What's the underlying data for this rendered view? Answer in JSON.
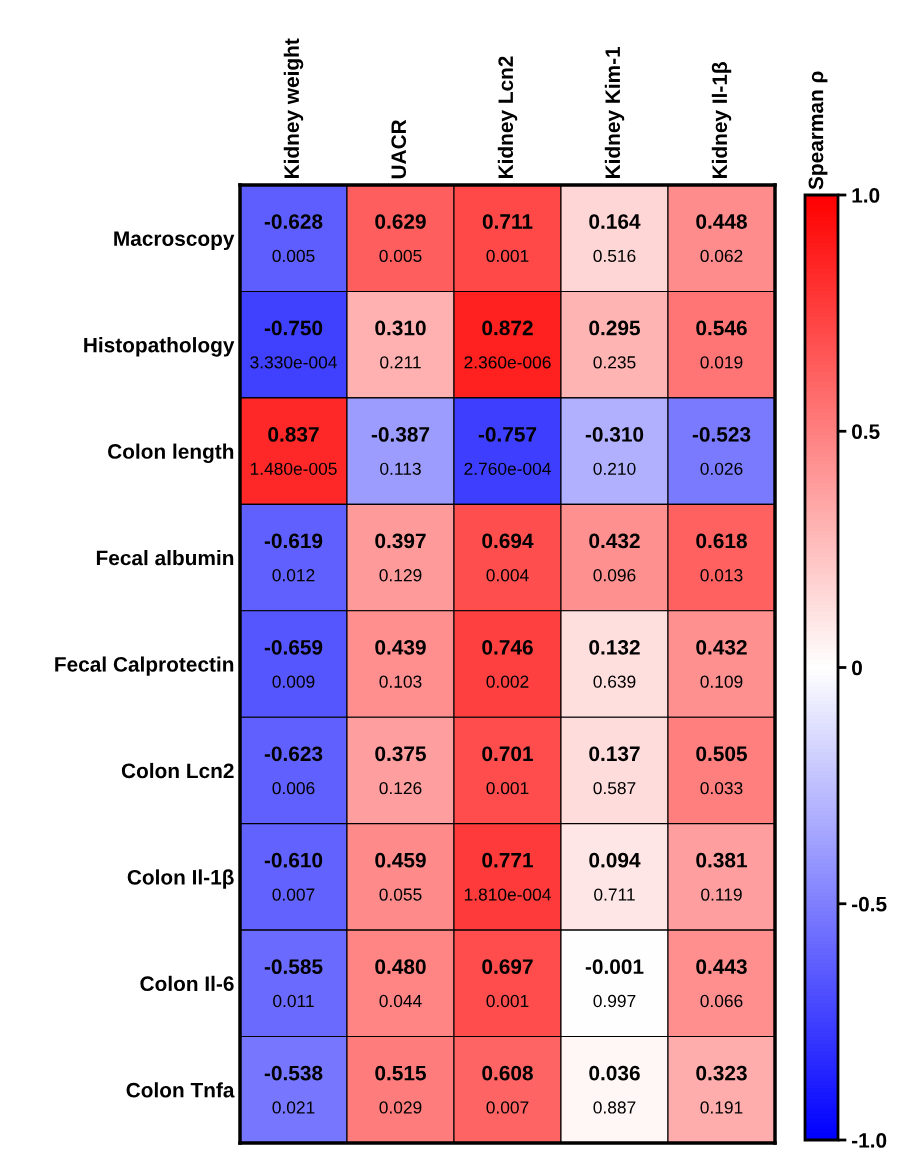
{
  "chart_data": {
    "type": "heatmap",
    "clabel": "Spearman ρ",
    "categories": [
      "Kidney weight",
      "UACR",
      "Kidney Lcn2",
      "Kidney Kim-1",
      "Kidney Il-1β"
    ],
    "y_categories": [
      "Macroscopy",
      "Histopathology",
      "Colon length",
      "Fecal albumin",
      "Fecal Calprotectin",
      "Colon Lcn2",
      "Colon Il-1β",
      "Colon Il-6",
      "Colon Tnfa"
    ],
    "cells": [
      [
        -0.628,
        0.629,
        0.711,
        0.164,
        0.448
      ],
      [
        -0.75,
        0.31,
        0.872,
        0.295,
        0.546
      ],
      [
        0.837,
        -0.387,
        -0.757,
        -0.31,
        -0.523
      ],
      [
        -0.619,
        0.397,
        0.694,
        0.432,
        0.618
      ],
      [
        -0.659,
        0.439,
        0.746,
        0.132,
        0.432
      ],
      [
        -0.623,
        0.375,
        0.701,
        0.137,
        0.505
      ],
      [
        -0.61,
        0.459,
        0.771,
        0.094,
        0.381
      ],
      [
        -0.585,
        0.48,
        0.697,
        -0.001,
        0.443
      ],
      [
        -0.538,
        0.515,
        0.608,
        0.036,
        0.323
      ]
    ],
    "cell_labels": [
      [
        "-0.628\n0.005",
        "0.629\n0.005",
        "0.711\n0.001",
        "0.164\n0.516",
        "0.448\n0.062"
      ],
      [
        "-0.750\n3.330e-004",
        "0.310\n0.211",
        "0.872\n2.360e-006",
        "0.295\n0.235",
        "0.546\n0.019"
      ],
      [
        "0.837\n1.480e-005",
        "-0.387\n0.113",
        "-0.757\n2.760e-004",
        "-0.310\n0.210",
        "-0.523\n0.026"
      ],
      [
        "-0.619\n0.012",
        "0.397\n0.129",
        "0.694\n0.004",
        "0.432\n0.096",
        "0.618\n0.013"
      ],
      [
        "-0.659\n0.009",
        "0.439\n0.103",
        "0.746\n0.002",
        "0.132\n0.639",
        "0.432\n0.109"
      ],
      [
        "-0.623\n0.006",
        "0.375\n0.126",
        "0.701\n0.001",
        "0.137\n0.587",
        "0.505\n0.033"
      ],
      [
        "-0.610\n0.007",
        "0.459\n0.055",
        "0.771\n1.810e-004",
        "0.094\n0.711",
        "0.381\n0.119"
      ],
      [
        "-0.585\n0.011",
        "0.480\n0.044",
        "0.697\n0.001",
        "-0.001\n0.997",
        "0.443\n0.066"
      ],
      [
        "-0.538\n0.021",
        "0.515\n0.029",
        "0.608\n0.007",
        "0.036\n0.887",
        "0.323\n0.191"
      ]
    ],
    "clim": [
      -1,
      1
    ],
    "cticks": [
      {
        "value": -1,
        "label": "-1.0"
      },
      {
        "value": -0.5,
        "label": "-0.5"
      },
      {
        "value": 0,
        "label": "0"
      },
      {
        "value": 0.5,
        "label": "0.5"
      },
      {
        "value": 1,
        "label": "1.0"
      }
    ]
  }
}
